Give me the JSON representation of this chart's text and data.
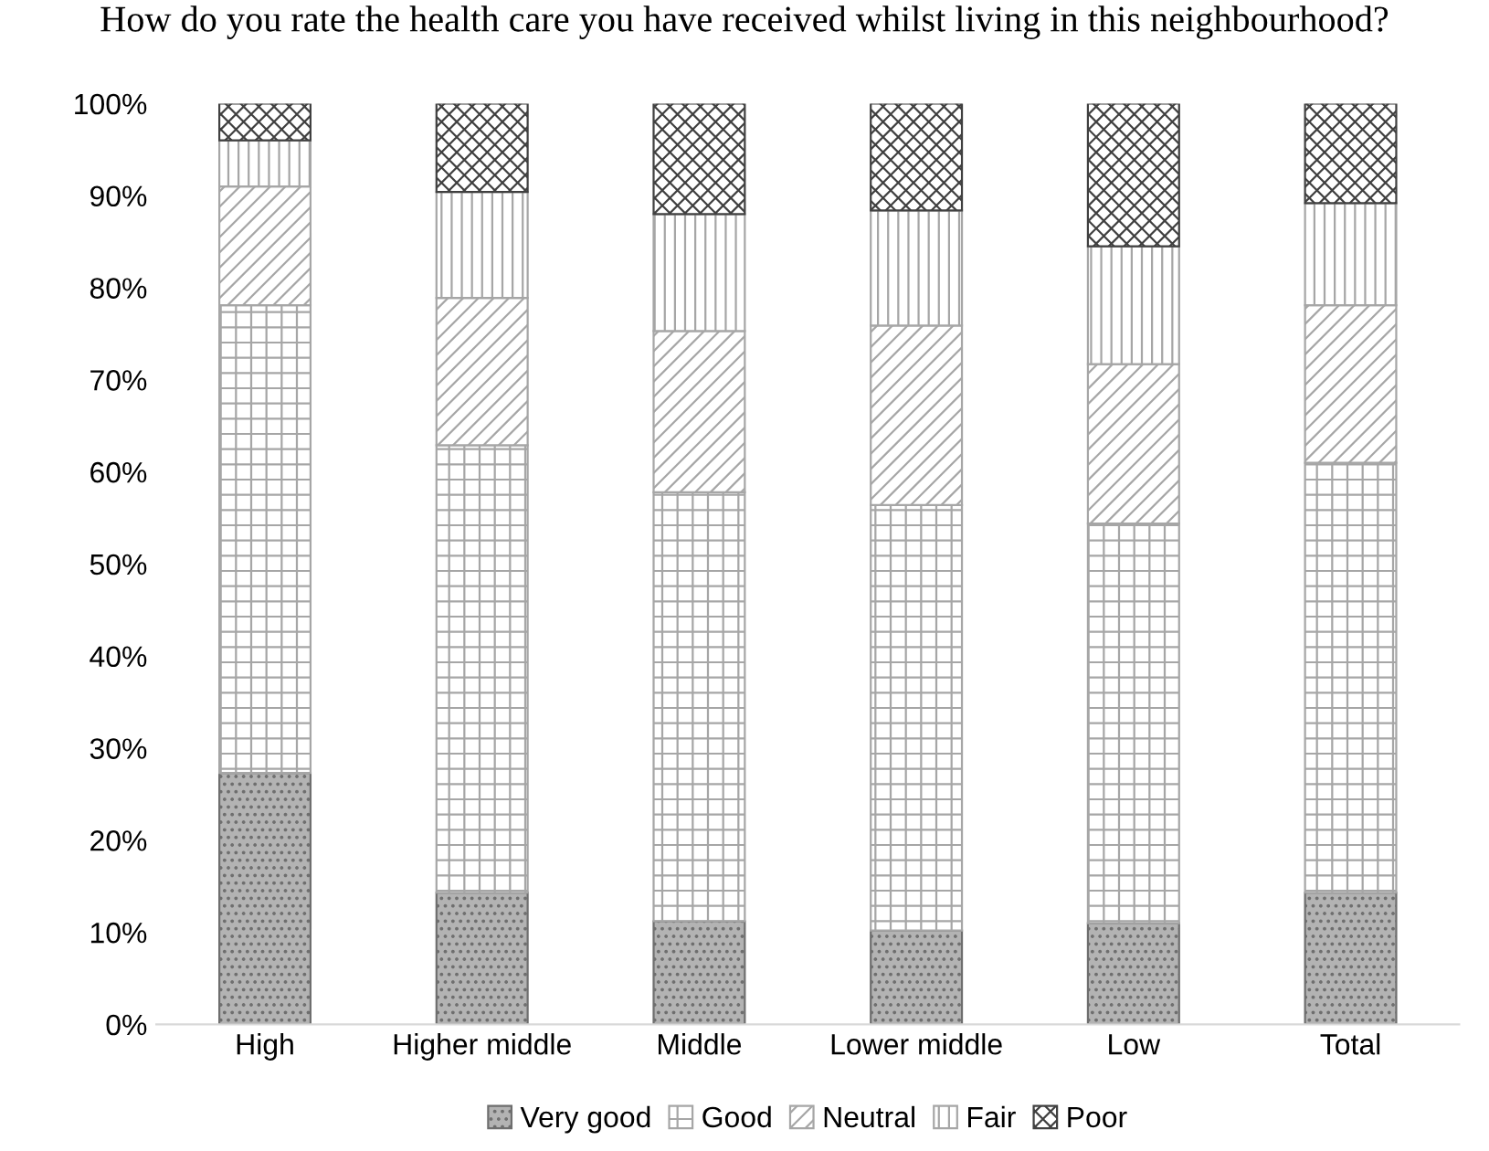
{
  "chart_data": {
    "type": "bar",
    "stacked": true,
    "title": "How do you rate the health care you have received whilst living in this neighbourhood?",
    "categories": [
      "High",
      "Higher middle",
      "Middle",
      "Lower middle",
      "Low",
      "Total"
    ],
    "series": [
      {
        "name": "Very good",
        "color": "#6e6e6e",
        "values": [
          27.3,
          14.3,
          11.2,
          10.2,
          11.0,
          14.3
        ]
      },
      {
        "name": "Good",
        "color": "#a6a6a6",
        "values": [
          50.8,
          48.6,
          46.6,
          46.2,
          43.4,
          46.7
        ]
      },
      {
        "name": "Neutral",
        "color": "#a6a6a6",
        "values": [
          12.9,
          16.0,
          17.5,
          19.5,
          17.3,
          17.1
        ]
      },
      {
        "name": "Fair",
        "color": "#a6a6a6",
        "values": [
          5.0,
          11.5,
          12.7,
          12.5,
          12.8,
          11.1
        ]
      },
      {
        "name": "Poor",
        "color": "#404040",
        "values": [
          4.0,
          9.6,
          12.0,
          11.6,
          15.5,
          10.8
        ]
      }
    ],
    "ylim": [
      0,
      100
    ],
    "yticks": [
      {
        "value": 0,
        "label": "0%"
      },
      {
        "value": 10,
        "label": "10%"
      },
      {
        "value": 20,
        "label": "20%"
      },
      {
        "value": 30,
        "label": "30%"
      },
      {
        "value": 40,
        "label": "40%"
      },
      {
        "value": 50,
        "label": "50%"
      },
      {
        "value": 60,
        "label": "60%"
      },
      {
        "value": 70,
        "label": "70%"
      },
      {
        "value": 80,
        "label": "80%"
      },
      {
        "value": 90,
        "label": "90%"
      },
      {
        "value": 100,
        "label": "100%"
      }
    ],
    "grid": false,
    "legend": "bottom"
  }
}
